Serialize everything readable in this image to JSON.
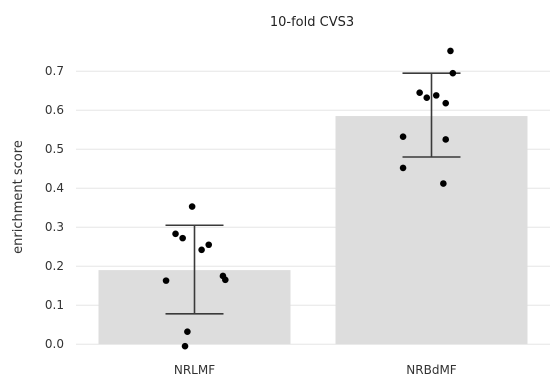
{
  "chart_data": {
    "type": "bar",
    "title": "10-fold CVS3",
    "xlabel": "",
    "ylabel": "enrichment score",
    "ylim": [
      -0.02,
      0.78
    ],
    "yticks": [
      "0.0",
      "0.1",
      "0.2",
      "0.3",
      "0.4",
      "0.5",
      "0.6",
      "0.7"
    ],
    "grid": true,
    "categories": [
      "NRLMF",
      "NRBdMF"
    ],
    "values": [
      0.19,
      0.585
    ],
    "error_bars": [
      {
        "low": 0.078,
        "high": 0.305
      },
      {
        "low": 0.48,
        "high": 0.695
      }
    ],
    "points": [
      {
        "category": "NRLMF",
        "offset": -0.12,
        "y": 0.163
      },
      {
        "category": "NRLMF",
        "offset": -0.08,
        "y": 0.283
      },
      {
        "category": "NRLMF",
        "offset": -0.05,
        "y": 0.272
      },
      {
        "category": "NRLMF",
        "offset": -0.03,
        "y": 0.032
      },
      {
        "category": "NRLMF",
        "offset": -0.04,
        "y": -0.005
      },
      {
        "category": "NRLMF",
        "offset": 0.03,
        "y": 0.242
      },
      {
        "category": "NRLMF",
        "offset": 0.06,
        "y": 0.255
      },
      {
        "category": "NRLMF",
        "offset": 0.12,
        "y": 0.175
      },
      {
        "category": "NRLMF",
        "offset": 0.13,
        "y": 0.165
      },
      {
        "category": "NRLMF",
        "offset": -0.01,
        "y": 0.353
      },
      {
        "category": "NRBdMF",
        "offset": -0.12,
        "y": 0.532
      },
      {
        "category": "NRBdMF",
        "offset": -0.12,
        "y": 0.452
      },
      {
        "category": "NRBdMF",
        "offset": -0.05,
        "y": 0.645
      },
      {
        "category": "NRBdMF",
        "offset": -0.02,
        "y": 0.632
      },
      {
        "category": "NRBdMF",
        "offset": 0.02,
        "y": 0.638
      },
      {
        "category": "NRBdMF",
        "offset": 0.05,
        "y": 0.412
      },
      {
        "category": "NRBdMF",
        "offset": 0.06,
        "y": 0.525
      },
      {
        "category": "NRBdMF",
        "offset": 0.06,
        "y": 0.618
      },
      {
        "category": "NRBdMF",
        "offset": 0.08,
        "y": 0.752
      },
      {
        "category": "NRBdMF",
        "offset": 0.09,
        "y": 0.695
      }
    ],
    "colors": {
      "bar": "#dddddd",
      "points": "#000000",
      "errorbar": "#3a3a3a",
      "grid": "#e6e6e6"
    }
  }
}
